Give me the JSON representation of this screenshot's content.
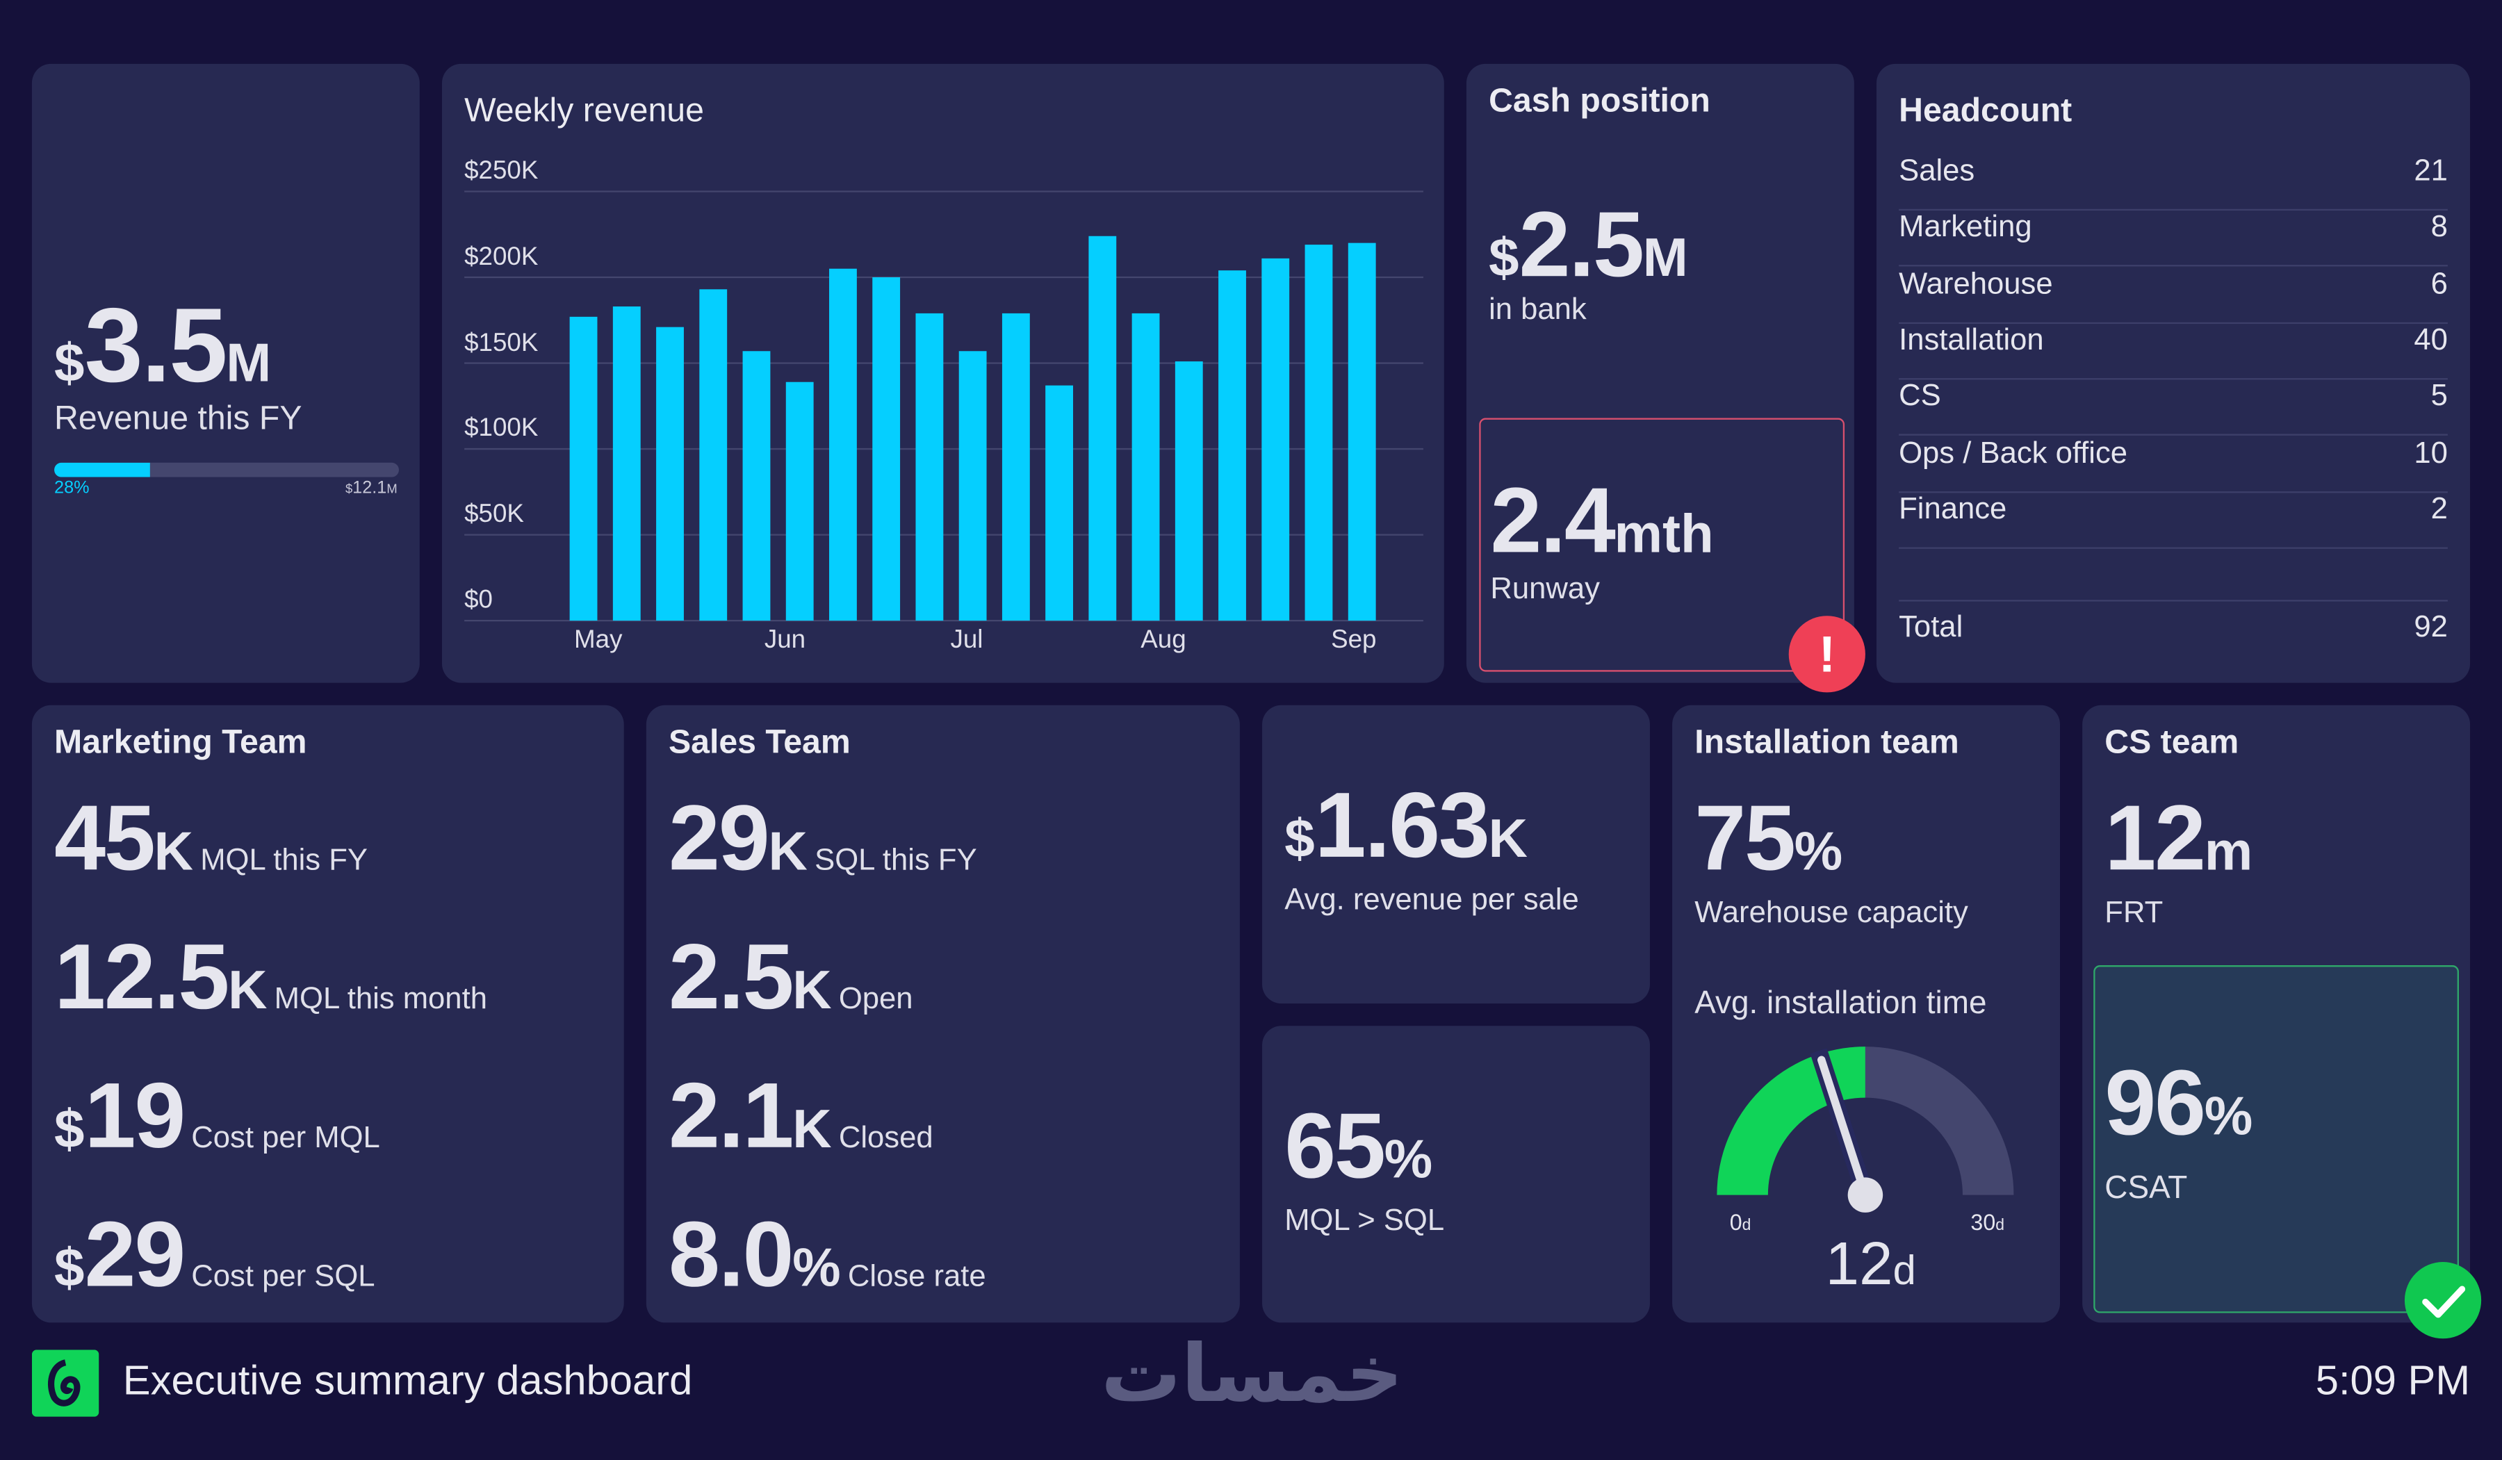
{
  "revenue": {
    "prefix": "$",
    "value": "3.5",
    "unit": "M",
    "label": "Revenue this FY",
    "progress_percent": 28,
    "progress_label": "28%",
    "target_prefix": "$",
    "target_value": "12.1",
    "target_unit": "M"
  },
  "weekly": {
    "title": "Weekly revenue"
  },
  "chart_data": {
    "type": "bar",
    "title": "Weekly revenue",
    "ylabel": "",
    "xlabel": "",
    "ylim": [
      0,
      250000
    ],
    "yticks": [
      {
        "v": 250000,
        "label": "$250K"
      },
      {
        "v": 200000,
        "label": "$200K"
      },
      {
        "v": 150000,
        "label": "$150K"
      },
      {
        "v": 100000,
        "label": "$100K"
      },
      {
        "v": 50000,
        "label": "$50K"
      },
      {
        "v": 0,
        "label": "$0"
      }
    ],
    "xticks": [
      {
        "at": 0.3,
        "label": "May"
      },
      {
        "at": 4.7,
        "label": "Jun"
      },
      {
        "at": 9.0,
        "label": "Jul"
      },
      {
        "at": 13.4,
        "label": "Aug"
      },
      {
        "at": 17.8,
        "label": "Sep"
      }
    ],
    "values": [
      177000,
      183000,
      171000,
      193000,
      157000,
      139000,
      205000,
      200000,
      179000,
      157000,
      179000,
      137000,
      224000,
      179000,
      151000,
      204000,
      211000,
      219000,
      220000
    ],
    "color": "#05cfff",
    "grid": true
  },
  "cash": {
    "title": "Cash position",
    "prefix": "$",
    "value": "2.5",
    "unit": "M",
    "label": "in bank",
    "runway_value": "2.4",
    "runway_unit": "mth",
    "runway_label": "Runway",
    "alert_icon": "!"
  },
  "headcount": {
    "title": "Headcount",
    "rows": [
      {
        "label": "Sales",
        "value": "21"
      },
      {
        "label": "Marketing",
        "value": "8"
      },
      {
        "label": "Warehouse",
        "value": "6"
      },
      {
        "label": "Installation",
        "value": "40"
      },
      {
        "label": "CS",
        "value": "5"
      },
      {
        "label": "Ops / Back office",
        "value": "10"
      },
      {
        "label": "Finance",
        "value": "2"
      }
    ],
    "total_label": "Total",
    "total_value": "92"
  },
  "marketing": {
    "title": "Marketing Team",
    "m1": {
      "value": "45",
      "unit": "K",
      "label": "MQL this FY"
    },
    "m2": {
      "value": "12.5",
      "unit": "K",
      "label": "MQL this month"
    },
    "m3": {
      "prefix": "$",
      "value": "19",
      "label": "Cost per MQL"
    },
    "m4": {
      "prefix": "$",
      "value": "29",
      "label": "Cost per SQL"
    }
  },
  "sales": {
    "title": "Sales Team",
    "m1": {
      "value": "29",
      "unit": "K",
      "label": "SQL this FY"
    },
    "m2": {
      "value": "2.5",
      "unit": "K",
      "label": "Open"
    },
    "m3": {
      "value": "2.1",
      "unit": "K",
      "label": "Closed"
    },
    "m4": {
      "value": "8.0",
      "unit": "%",
      "label": "Close rate"
    }
  },
  "avg_sale": {
    "prefix": "$",
    "value": "1.63",
    "unit": "K",
    "label": "Avg. revenue per sale"
  },
  "conversion": {
    "value": "65",
    "unit": "%",
    "label": "MQL > SQL"
  },
  "installation": {
    "title": "Installation team",
    "value": "75",
    "unit": "%",
    "label": "Warehouse capacity",
    "gauge_title": "Avg. installation time",
    "gauge_min": 0,
    "gauge_max": 30,
    "gauge_target": 15,
    "gauge_value": 12,
    "min_label": "0",
    "max_label": "30",
    "unit_small": "d",
    "value_label": "12",
    "green": "#10d458",
    "track": "#44466e"
  },
  "cs": {
    "title": "CS team",
    "value": "12",
    "unit": "m",
    "label": "FRT",
    "csat_value": "96",
    "csat_unit": "%",
    "csat_label": "CSAT"
  },
  "footer": {
    "title": "Executive summary dashboard",
    "time": "5:09 PM",
    "watermark": "خمسات"
  }
}
